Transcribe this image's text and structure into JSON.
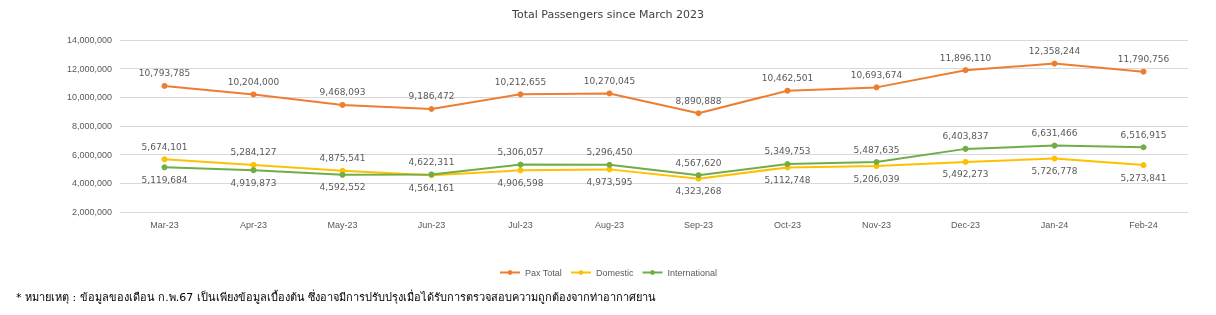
{
  "chart_data": {
    "type": "line",
    "title": "Total Passengers since March 2023",
    "categories": [
      "Mar-23",
      "Apr-23",
      "May-23",
      "Jun-23",
      "Jul-23",
      "Aug-23",
      "Sep-23",
      "Oct-23",
      "Nov-23",
      "Dec-23",
      "Jan-24",
      "Feb-24"
    ],
    "series": [
      {
        "name": "Pax Total",
        "color": "#ed7d31",
        "values": [
          10793785,
          10204000,
          9468093,
          9186472,
          10212655,
          10270045,
          8890888,
          10462501,
          10693674,
          11896110,
          12358244,
          11790756
        ],
        "value_labels": [
          "10,793,785",
          "10,204,000",
          "9,468,093",
          "9,186,472",
          "10,212,655",
          "10,270,045",
          "8,890,888",
          "10,462,501",
          "10,693,674",
          "11,896,110",
          "12,358,244",
          "11,790,756"
        ]
      },
      {
        "name": "Domestic",
        "color": "#ffc000",
        "values": [
          5674101,
          5284127,
          4875541,
          4564161,
          4906598,
          4973595,
          4323268,
          5112748,
          5206039,
          5492273,
          5726778,
          5273841
        ],
        "value_labels": [
          "5,674,101",
          "5,284,127",
          "4,875,541",
          "4,564,161",
          "4,906,598",
          "4,973,595",
          "4,323,268",
          "5,112,748",
          "5,206,039",
          "5,492,273",
          "5,726,778",
          "5,273,841"
        ]
      },
      {
        "name": "International",
        "color": "#70ad47",
        "values": [
          5119684,
          4919873,
          4592552,
          4622311,
          5306057,
          5296450,
          4567620,
          5349753,
          5487635,
          6403837,
          6631466,
          6516915
        ],
        "value_labels": [
          "5,119,684",
          "4,919,873",
          "4,592,552",
          "4,622,311",
          "5,306,057",
          "5,296,450",
          "4,567,620",
          "5,349,753",
          "5,487,635",
          "6,403,837",
          "6,631,466",
          "6,516,915"
        ]
      }
    ],
    "ylim": [
      2000000,
      14000000
    ],
    "yticks": [
      {
        "value": 2000000,
        "label": "2,000,000"
      },
      {
        "value": 4000000,
        "label": "4,000,000"
      },
      {
        "value": 6000000,
        "label": "6,000,000"
      },
      {
        "value": 8000000,
        "label": "8,000,000"
      },
      {
        "value": 10000000,
        "label": "10,000,000"
      },
      {
        "value": 12000000,
        "label": "12,000,000"
      },
      {
        "value": 14000000,
        "label": "14,000,000"
      }
    ],
    "grid": "y",
    "legend": "bottom",
    "marker": "circle",
    "line_style": "solid",
    "annotations": [
      "* หมายเหตุ : ข้อมูลของเดือน ก.พ.67 เป็นเพียงข้อมูลเบื้องต้น ซึ่งอาจมีการปรับปรุงเมื่อได้รับการตรวจสอบความถูกต้องจากท่าอากาศยาน"
    ]
  }
}
